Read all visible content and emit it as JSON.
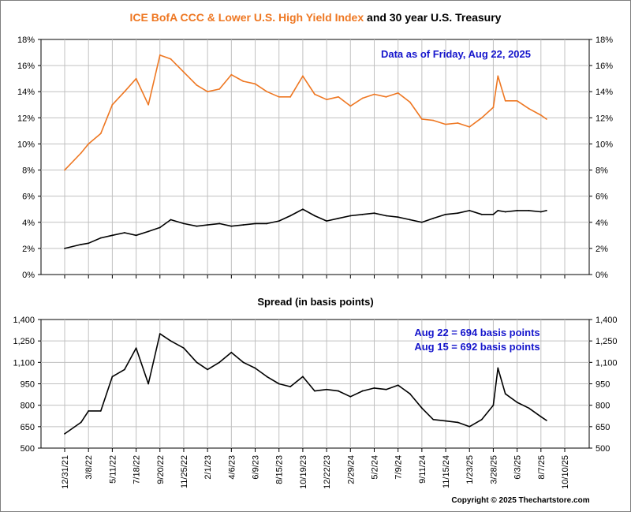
{
  "title": {
    "part1": "ICE BofA CCC & Lower U.S. High Yield Index",
    "part2": " and 30 year U.S. Treasury"
  },
  "colors": {
    "hy": "#ee7722",
    "treasury": "#000000",
    "annotation": "#1515cc"
  },
  "top_panel": {
    "annotation": "Data as of Friday, Aug 22, 2025",
    "yticks": [
      "0%",
      "2%",
      "4%",
      "6%",
      "8%",
      "10%",
      "12%",
      "14%",
      "16%",
      "18%"
    ]
  },
  "bottom_panel": {
    "title": "Spread (in basis points)",
    "annotation_line1": "Aug 22 = 694 basis points",
    "annotation_line2": "Aug 15 = 692 basis points",
    "yticks": [
      "500",
      "650",
      "800",
      "950",
      "1,100",
      "1,250",
      "1,400"
    ]
  },
  "xticks": [
    "12/31/21",
    "3/8/22",
    "5/11/22",
    "7/18/22",
    "9/20/22",
    "11/25/22",
    "2/1/23",
    "4/6/23",
    "6/9/23",
    "8/15/23",
    "10/19/23",
    "12/22/23",
    "2/29/24",
    "5/2/24",
    "7/9/24",
    "9/11/24",
    "11/15/24",
    "1/23/25",
    "3/28/25",
    "6/3/25",
    "8/7/25",
    "10/10/25"
  ],
  "copyright": "Copyright © 2025 Thechartstore.com",
  "chart_data": [
    {
      "type": "line",
      "title": "ICE BofA CCC & Lower U.S. High Yield Index and 30 year U.S. Treasury",
      "ylim": [
        0,
        18
      ],
      "y_unit": "%",
      "grid": true,
      "x": [
        "12/31/21",
        "2/15/22",
        "3/8/22",
        "4/10/22",
        "5/11/22",
        "6/15/22",
        "7/18/22",
        "8/20/22",
        "9/20/22",
        "10/20/22",
        "11/25/22",
        "1/1/23",
        "2/1/23",
        "3/5/23",
        "4/6/23",
        "5/8/23",
        "6/9/23",
        "7/12/23",
        "8/15/23",
        "9/15/23",
        "10/19/23",
        "11/20/23",
        "12/22/23",
        "1/25/24",
        "2/29/24",
        "4/1/24",
        "5/2/24",
        "6/5/24",
        "7/9/24",
        "8/10/24",
        "9/11/24",
        "10/12/24",
        "11/15/24",
        "12/20/24",
        "1/23/25",
        "2/25/25",
        "3/28/25",
        "4/10/25",
        "5/1/25",
        "6/3/25",
        "7/5/25",
        "8/7/25",
        "8/22/25"
      ],
      "series": [
        {
          "name": "ICE BofA CCC & Lower U.S. High Yield Index",
          "values": [
            8.0,
            9.3,
            10.0,
            10.8,
            13.0,
            14.0,
            15.0,
            13.0,
            16.8,
            16.5,
            15.5,
            14.5,
            14.0,
            14.2,
            15.3,
            14.8,
            14.6,
            14.0,
            13.6,
            13.6,
            15.2,
            13.8,
            13.4,
            13.6,
            12.9,
            13.5,
            13.8,
            13.6,
            13.9,
            13.2,
            11.9,
            11.8,
            11.5,
            11.6,
            11.3,
            12.0,
            12.8,
            15.2,
            13.3,
            13.3,
            12.7,
            12.2,
            11.9
          ]
        },
        {
          "name": "30 year U.S. Treasury",
          "values": [
            2.0,
            2.3,
            2.4,
            2.8,
            3.0,
            3.2,
            3.0,
            3.3,
            3.6,
            4.2,
            3.9,
            3.7,
            3.8,
            3.9,
            3.7,
            3.8,
            3.9,
            3.9,
            4.1,
            4.5,
            5.0,
            4.5,
            4.1,
            4.3,
            4.5,
            4.6,
            4.7,
            4.5,
            4.4,
            4.2,
            4.0,
            4.3,
            4.6,
            4.7,
            4.9,
            4.6,
            4.6,
            4.9,
            4.8,
            4.9,
            4.9,
            4.8,
            4.9
          ]
        }
      ]
    },
    {
      "type": "line",
      "title": "Spread (in basis points)",
      "ylim": [
        500,
        1400
      ],
      "grid": true,
      "x": [
        "12/31/21",
        "2/15/22",
        "3/8/22",
        "4/10/22",
        "5/11/22",
        "6/15/22",
        "7/18/22",
        "8/20/22",
        "9/20/22",
        "10/20/22",
        "11/25/22",
        "1/1/23",
        "2/1/23",
        "3/5/23",
        "4/6/23",
        "5/8/23",
        "6/9/23",
        "7/12/23",
        "8/15/23",
        "9/15/23",
        "10/19/23",
        "11/20/23",
        "12/22/23",
        "1/25/24",
        "2/29/24",
        "4/1/24",
        "5/2/24",
        "6/5/24",
        "7/9/24",
        "8/10/24",
        "9/11/24",
        "10/12/24",
        "11/15/24",
        "12/20/24",
        "1/23/25",
        "2/25/25",
        "3/28/25",
        "4/10/25",
        "5/1/25",
        "6/3/25",
        "7/5/25",
        "8/7/25",
        "8/22/25"
      ],
      "series": [
        {
          "name": "Spread",
          "values": [
            600,
            680,
            760,
            760,
            1000,
            1050,
            1200,
            950,
            1300,
            1250,
            1200,
            1100,
            1050,
            1100,
            1170,
            1100,
            1060,
            1000,
            950,
            930,
            1000,
            900,
            910,
            900,
            860,
            900,
            920,
            910,
            940,
            880,
            780,
            700,
            690,
            680,
            650,
            700,
            800,
            1060,
            880,
            820,
            780,
            720,
            694
          ]
        }
      ]
    }
  ]
}
